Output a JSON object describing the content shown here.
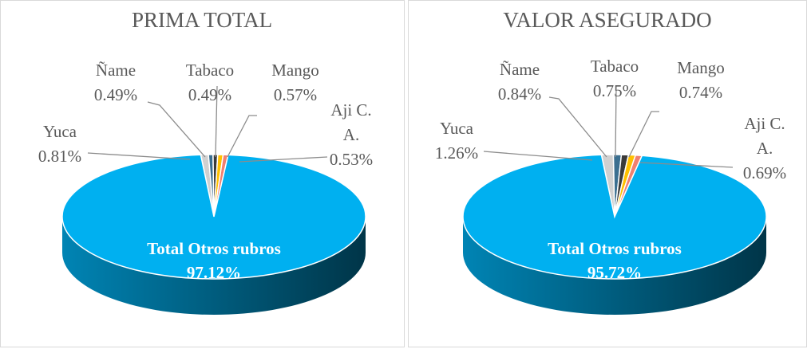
{
  "chart_data": [
    {
      "type": "pie",
      "title": "PRIMA TOTAL",
      "categories": [
        "Yuca",
        "Ñame",
        "Tabaco",
        "Mango",
        "Aji C. A.",
        "Total Otros rubros"
      ],
      "values": [
        0.81,
        0.49,
        0.49,
        0.57,
        0.53,
        97.12
      ],
      "value_labels": [
        "0.81%",
        "0.49%",
        "0.49%",
        "0.57%",
        "0.53%",
        "97.12%"
      ],
      "colors": [
        "#d0d0d0",
        "#3b6f90",
        "#3a3a3a",
        "#ffc000",
        "#f08070",
        "#00b0f0"
      ]
    },
    {
      "type": "pie",
      "title": "VALOR ASEGURADO",
      "categories": [
        "Yuca",
        "Ñame",
        "Tabaco",
        "Mango",
        "Aji C. A.",
        "Total Otros rubros"
      ],
      "values": [
        1.26,
        0.84,
        0.75,
        0.74,
        0.69,
        95.72
      ],
      "value_labels": [
        "1.26%",
        "0.84%",
        "0.75%",
        "0.74%",
        "0.69%",
        "95.72%"
      ],
      "colors": [
        "#d0d0d0",
        "#3b6f90",
        "#3a3a3a",
        "#ffc000",
        "#f08070",
        "#00b0f0"
      ]
    }
  ]
}
